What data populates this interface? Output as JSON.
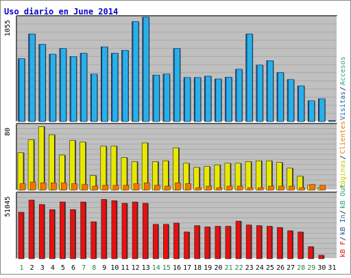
{
  "chart_data": [
    {
      "type": "bar",
      "title": "Uso diario en June 2014",
      "x": [
        "1",
        "2",
        "3",
        "4",
        "5",
        "6",
        "7",
        "8",
        "9",
        "10",
        "11",
        "12",
        "13",
        "14",
        "15",
        "16",
        "17",
        "18",
        "19",
        "20",
        "21",
        "22",
        "23",
        "24",
        "25",
        "26",
        "27",
        "28",
        "29",
        "30",
        "31"
      ],
      "weekend_days": [
        "1",
        "7",
        "8",
        "14",
        "15",
        "21",
        "22",
        "28",
        "29"
      ],
      "ymax_label": "1055",
      "ylim": [
        0,
        1055
      ],
      "series": [
        {
          "name": "Visitas",
          "color": "#1e5aa0",
          "values": [
            635,
            885,
            780,
            680,
            738,
            657,
            690,
            480,
            755,
            690,
            720,
            1010,
            1055,
            470,
            480,
            738,
            445,
            445,
            458,
            430,
            448,
            528,
            885,
            570,
            615,
            495,
            425,
            360,
            210,
            230,
            10
          ]
        },
        {
          "name": "Accesos",
          "color": "#2ab0e8",
          "values": [
            635,
            885,
            780,
            680,
            738,
            657,
            690,
            480,
            755,
            690,
            720,
            1010,
            1055,
            470,
            480,
            738,
            445,
            445,
            458,
            430,
            448,
            528,
            885,
            570,
            615,
            495,
            425,
            360,
            210,
            230,
            10
          ]
        }
      ],
      "right_labels": [
        {
          "text": "Visitas",
          "color": "#1e5aa0"
        },
        {
          "text": "Accesos",
          "color": "#2aa088"
        }
      ]
    },
    {
      "type": "bar",
      "ymax_label": "80",
      "ylim": [
        0,
        80
      ],
      "series": [
        {
          "name": "Páginas",
          "color": "#e8e800",
          "values": [
            46,
            62,
            78,
            68,
            43,
            61,
            59,
            18,
            54,
            54,
            40,
            35,
            58,
            35,
            36,
            52,
            33,
            28,
            29,
            31,
            33,
            33,
            35,
            36,
            36,
            34,
            27,
            17,
            6,
            3,
            0
          ]
        },
        {
          "name": "Clientes",
          "color": "#f07800",
          "values": [
            8,
            10,
            9,
            9,
            9,
            8,
            7,
            5,
            6,
            6,
            6,
            8,
            9,
            6,
            5,
            9,
            8,
            3,
            5,
            3,
            5,
            5,
            3,
            3,
            5,
            5,
            5,
            3,
            7,
            6,
            0
          ]
        }
      ],
      "right_labels": [
        {
          "text": "Páginas",
          "color": "#c8c800"
        },
        {
          "text": "Clientes",
          "color": "#f07800"
        }
      ]
    },
    {
      "type": "bar",
      "ymax_label": "51045",
      "ylim": [
        0,
        51045
      ],
      "series": [
        {
          "name": "kB F",
          "color": "#e81010",
          "values": [
            36500,
            46000,
            42500,
            38500,
            44500,
            38500,
            44500,
            29000,
            46500,
            45500,
            43500,
            44500,
            43500,
            27000,
            27000,
            28000,
            21000,
            26000,
            25000,
            25500,
            25500,
            29500,
            26500,
            26000,
            25500,
            24500,
            22000,
            21000,
            9500,
            2800,
            0
          ]
        }
      ],
      "right_labels": [
        {
          "text": "kB F",
          "color": "#e81010"
        },
        {
          "text": "kB In",
          "color": "#1e5aa0"
        },
        {
          "text": "kB Out",
          "color": "#2aa088"
        }
      ]
    }
  ]
}
